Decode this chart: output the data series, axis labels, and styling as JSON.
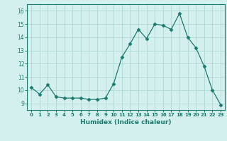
{
  "x": [
    0,
    1,
    2,
    3,
    4,
    5,
    6,
    7,
    8,
    9,
    10,
    11,
    12,
    13,
    14,
    15,
    16,
    17,
    18,
    19,
    20,
    21,
    22,
    23
  ],
  "y": [
    10.2,
    9.7,
    10.4,
    9.5,
    9.4,
    9.4,
    9.4,
    9.3,
    9.3,
    9.4,
    10.5,
    12.5,
    13.5,
    14.6,
    13.9,
    15.0,
    14.9,
    14.6,
    15.8,
    14.0,
    13.2,
    11.8,
    10.0,
    8.9
  ],
  "line_color": "#1a7a6e",
  "marker": "D",
  "marker_size": 2.5,
  "bg_color": "#d4f0ee",
  "grid_color": "#b0d8d4",
  "xlabel": "Humidex (Indice chaleur)",
  "ylim": [
    8.5,
    16.5
  ],
  "xlim": [
    -0.5,
    23.5
  ],
  "yticks": [
    9,
    10,
    11,
    12,
    13,
    14,
    15,
    16
  ],
  "xticks": [
    0,
    1,
    2,
    3,
    4,
    5,
    6,
    7,
    8,
    9,
    10,
    11,
    12,
    13,
    14,
    15,
    16,
    17,
    18,
    19,
    20,
    21,
    22,
    23
  ],
  "tick_color": "#1a7a6e",
  "label_color": "#1a7a6e"
}
